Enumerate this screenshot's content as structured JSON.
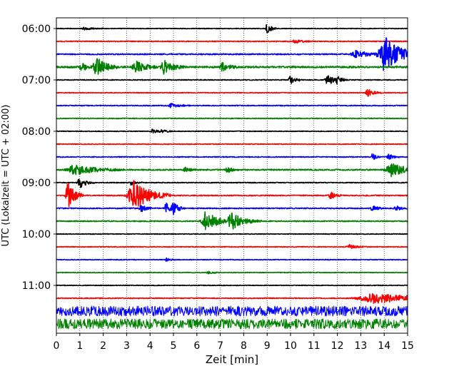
{
  "chart_data": {
    "type": "line",
    "title": "",
    "xlabel": "Zeit  [min]",
    "ylabel": "UTC (Lokalzeit = UTC + 02:00)",
    "xlim": [
      0,
      15
    ],
    "x_ticks": [
      "0",
      "1",
      "2",
      "3",
      "4",
      "5",
      "6",
      "7",
      "8",
      "9",
      "10",
      "11",
      "12",
      "13",
      "14",
      "15"
    ],
    "x_grid": "dotted vertical at each minute",
    "y_hour_labels": [
      "06:00",
      "07:00",
      "08:00",
      "09:00",
      "10:00",
      "11:00"
    ],
    "trace_interval_minutes": 15,
    "color_cycle": [
      "#000000",
      "#ff0000",
      "#0000ff",
      "#008000"
    ],
    "series": [
      {
        "start": "06:00",
        "color": "#000000",
        "baseline_noise": 0.5,
        "events": [
          {
            "minute": 9.0,
            "amplitude": 8,
            "duration": 0.25
          },
          {
            "minute": 1.2,
            "amplitude": 2,
            "duration": 0.5
          }
        ]
      },
      {
        "start": "06:15",
        "color": "#ff0000",
        "baseline_noise": 0.6,
        "events": [
          {
            "minute": 10.2,
            "amplitude": 2,
            "duration": 0.6
          }
        ]
      },
      {
        "start": "06:30",
        "color": "#0000ff",
        "baseline_noise": 0.8,
        "events": [
          {
            "minute": 14.0,
            "amplitude": 26,
            "duration": 1.0
          },
          {
            "minute": 12.8,
            "amplitude": 5,
            "duration": 0.8
          }
        ]
      },
      {
        "start": "06:45",
        "color": "#008000",
        "baseline_noise": 1.2,
        "events": [
          {
            "minute": 1.7,
            "amplitude": 14,
            "duration": 0.6
          },
          {
            "minute": 1.1,
            "amplitude": 5,
            "duration": 0.4
          },
          {
            "minute": 3.4,
            "amplitude": 9,
            "duration": 0.6
          },
          {
            "minute": 4.6,
            "amplitude": 9,
            "duration": 0.6
          },
          {
            "minute": 7.1,
            "amplitude": 6,
            "duration": 0.4
          }
        ]
      },
      {
        "start": "07:00",
        "color": "#000000",
        "baseline_noise": 0.6,
        "events": [
          {
            "minute": 10.0,
            "amplitude": 7,
            "duration": 0.3
          },
          {
            "minute": 11.6,
            "amplitude": 7,
            "duration": 0.5
          },
          {
            "minute": 12.0,
            "amplitude": 5,
            "duration": 0.3
          }
        ]
      },
      {
        "start": "07:15",
        "color": "#ff0000",
        "baseline_noise": 0.5,
        "events": [
          {
            "minute": 13.3,
            "amplitude": 5,
            "duration": 0.4
          }
        ]
      },
      {
        "start": "07:30",
        "color": "#0000ff",
        "baseline_noise": 0.6,
        "events": [
          {
            "minute": 4.9,
            "amplitude": 3,
            "duration": 0.5
          }
        ]
      },
      {
        "start": "07:45",
        "color": "#008000",
        "baseline_noise": 0.6,
        "events": []
      },
      {
        "start": "08:00",
        "color": "#000000",
        "baseline_noise": 0.5,
        "events": [
          {
            "minute": 4.1,
            "amplitude": 3,
            "duration": 0.3
          },
          {
            "minute": 4.5,
            "amplitude": 2,
            "duration": 0.4
          }
        ]
      },
      {
        "start": "08:15",
        "color": "#ff0000",
        "baseline_noise": 0.5,
        "events": []
      },
      {
        "start": "08:30",
        "color": "#0000ff",
        "baseline_noise": 0.6,
        "events": [
          {
            "minute": 13.5,
            "amplitude": 5,
            "duration": 0.2
          },
          {
            "minute": 14.2,
            "amplitude": 4,
            "duration": 0.3
          }
        ]
      },
      {
        "start": "08:45",
        "color": "#008000",
        "baseline_noise": 0.9,
        "events": [
          {
            "minute": 0.8,
            "amplitude": 7,
            "duration": 1.3
          },
          {
            "minute": 5.5,
            "amplitude": 4,
            "duration": 0.3
          },
          {
            "minute": 7.3,
            "amplitude": 4,
            "duration": 0.3
          },
          {
            "minute": 14.3,
            "amplitude": 9,
            "duration": 1.0
          }
        ]
      },
      {
        "start": "09:00",
        "color": "#000000",
        "baseline_noise": 0.6,
        "events": [
          {
            "minute": 1.0,
            "amplitude": 8,
            "duration": 0.4
          },
          {
            "minute": 3.2,
            "amplitude": 3,
            "duration": 0.3
          }
        ]
      },
      {
        "start": "09:15",
        "color": "#ff0000",
        "baseline_noise": 0.7,
        "events": [
          {
            "minute": 0.5,
            "amplitude": 22,
            "duration": 0.4
          },
          {
            "minute": 3.3,
            "amplitude": 22,
            "duration": 1.0
          },
          {
            "minute": 11.7,
            "amplitude": 5,
            "duration": 0.3
          }
        ]
      },
      {
        "start": "09:30",
        "color": "#0000ff",
        "baseline_noise": 0.7,
        "events": [
          {
            "minute": 3.6,
            "amplitude": 6,
            "duration": 0.3
          },
          {
            "minute": 4.7,
            "amplitude": 7,
            "duration": 0.4
          },
          {
            "minute": 5.0,
            "amplitude": 7,
            "duration": 0.3
          },
          {
            "minute": 13.5,
            "amplitude": 4,
            "duration": 0.3
          },
          {
            "minute": 14.5,
            "amplitude": 4,
            "duration": 0.3
          }
        ]
      },
      {
        "start": "09:45",
        "color": "#008000",
        "baseline_noise": 0.7,
        "events": [
          {
            "minute": 6.4,
            "amplitude": 14,
            "duration": 0.8
          },
          {
            "minute": 7.5,
            "amplitude": 11,
            "duration": 0.8
          }
        ]
      },
      {
        "start": "10:00",
        "color": "#000000",
        "baseline_noise": 0.5,
        "events": []
      },
      {
        "start": "10:15",
        "color": "#ff0000",
        "baseline_noise": 0.5,
        "events": [
          {
            "minute": 12.5,
            "amplitude": 3,
            "duration": 0.5
          }
        ]
      },
      {
        "start": "10:30",
        "color": "#0000ff",
        "baseline_noise": 0.5,
        "events": [
          {
            "minute": 4.7,
            "amplitude": 2,
            "duration": 0.3
          }
        ]
      },
      {
        "start": "10:45",
        "color": "#008000",
        "baseline_noise": 0.5,
        "events": [
          {
            "minute": 6.5,
            "amplitude": 2,
            "duration": 0.3
          }
        ]
      },
      {
        "start": "11:00",
        "color": "#000000",
        "baseline_noise": 0.5,
        "events": []
      },
      {
        "start": "11:15",
        "color": "#ff0000",
        "baseline_noise": 0.6,
        "events": [
          {
            "minute": 13.6,
            "amplitude": 7,
            "duration": 2.8
          }
        ]
      },
      {
        "start": "11:30",
        "color": "#0000ff",
        "baseline_noise": 7,
        "events": []
      },
      {
        "start": "11:45",
        "color": "#008000",
        "baseline_noise": 7,
        "events": []
      }
    ]
  }
}
